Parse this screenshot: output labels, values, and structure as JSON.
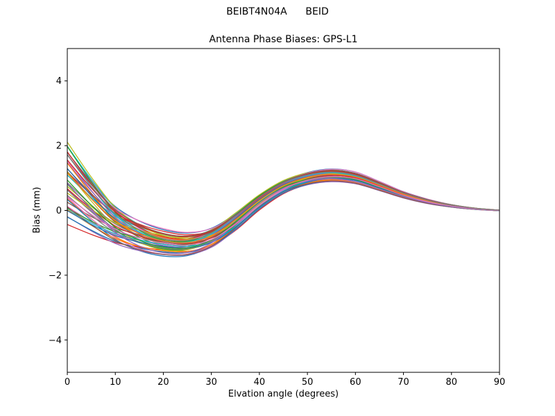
{
  "chart_data": {
    "type": "line",
    "suptitle": "BEIBT4N04A      BEID",
    "title": "Antenna Phase Biases: GPS-L1",
    "xlabel": "Elvation angle (degrees)",
    "ylabel": "Bias (mm)",
    "xlim": [
      0,
      90
    ],
    "ylim": [
      -5,
      5
    ],
    "xticks": [
      0,
      10,
      20,
      30,
      40,
      50,
      60,
      70,
      80,
      90
    ],
    "yticks": [
      -4,
      -2,
      0,
      2,
      4
    ],
    "grid": false,
    "legend": "none",
    "x": [
      0,
      5,
      10,
      15,
      20,
      25,
      30,
      35,
      40,
      45,
      50,
      55,
      60,
      65,
      70,
      75,
      80,
      85,
      90
    ],
    "mean": [
      0.85,
      0.15,
      -0.45,
      -0.8,
      -1.0,
      -1.05,
      -0.85,
      -0.35,
      0.25,
      0.72,
      0.98,
      1.08,
      1.0,
      0.75,
      0.48,
      0.28,
      0.14,
      0.05,
      0.0
    ],
    "spread": [
      1.15,
      0.85,
      0.6,
      0.45,
      0.36,
      0.32,
      0.3,
      0.27,
      0.22,
      0.2,
      0.2,
      0.2,
      0.18,
      0.14,
      0.1,
      0.07,
      0.04,
      0.02,
      0.01
    ],
    "mode2": [
      0.5,
      0.25,
      0.0,
      -0.15,
      -0.2,
      -0.15,
      -0.05,
      0.05,
      0.08,
      0.05,
      0.0,
      -0.03,
      -0.05,
      -0.04,
      -0.02,
      -0.01,
      0.0,
      0.0,
      0.0
    ],
    "series_coeffs": [
      [
        0.95,
        -0.3
      ],
      [
        -0.6,
        0.4
      ],
      [
        0.2,
        0.8
      ],
      [
        -0.9,
        -0.5
      ],
      [
        0.5,
        0.1
      ],
      [
        -0.15,
        -0.85
      ],
      [
        0.75,
        0.55
      ],
      [
        -0.4,
        0.15
      ],
      [
        0.1,
        -0.45
      ],
      [
        0.88,
        0.25
      ],
      [
        -0.75,
        0.7
      ],
      [
        0.35,
        -0.2
      ],
      [
        -0.25,
        0.5
      ],
      [
        0.6,
        -0.7
      ],
      [
        -0.95,
        0.1
      ],
      [
        0.15,
        0.35
      ],
      [
        -0.5,
        -0.3
      ],
      [
        0.8,
        0.05
      ],
      [
        -0.1,
        0.9
      ],
      [
        0.45,
        -0.55
      ],
      [
        -0.85,
        -0.15
      ],
      [
        0.25,
        0.65
      ],
      [
        -0.35,
        -0.75
      ],
      [
        0.7,
        0.3
      ],
      [
        -0.2,
        0.05
      ],
      [
        0.55,
        -0.4
      ],
      [
        -0.65,
        0.6
      ],
      [
        0.05,
        -0.1
      ],
      [
        0.9,
        0.45
      ],
      [
        -0.45,
        -0.6
      ],
      [
        0.3,
        0.2
      ],
      [
        -0.7,
        -0.05
      ],
      [
        0.65,
        0.75
      ],
      [
        -0.05,
        -0.25
      ],
      [
        0.4,
        0.5
      ],
      [
        -0.8,
        0.35
      ],
      [
        0.85,
        -0.65
      ],
      [
        -0.3,
        0.25
      ],
      [
        0.12,
        -0.9
      ],
      [
        0.5,
        0.6
      ],
      [
        -0.55,
        -0.45
      ],
      [
        0.22,
        0.1
      ],
      [
        -0.12,
        0.45
      ],
      [
        0.68,
        -0.15
      ],
      [
        -0.38,
        0.85
      ],
      [
        0.78,
        -0.05
      ],
      [
        -0.22,
        -0.35
      ],
      [
        0.58,
        0.4
      ]
    ],
    "palette": [
      "#1f77b4",
      "#ff7f0e",
      "#2ca02c",
      "#d62728",
      "#9467bd",
      "#8c564b",
      "#e377c2",
      "#7f7f7f",
      "#bcbd22",
      "#17becf"
    ],
    "line_width": 1.3,
    "spine_color": "#000000",
    "background": "#ffffff"
  }
}
